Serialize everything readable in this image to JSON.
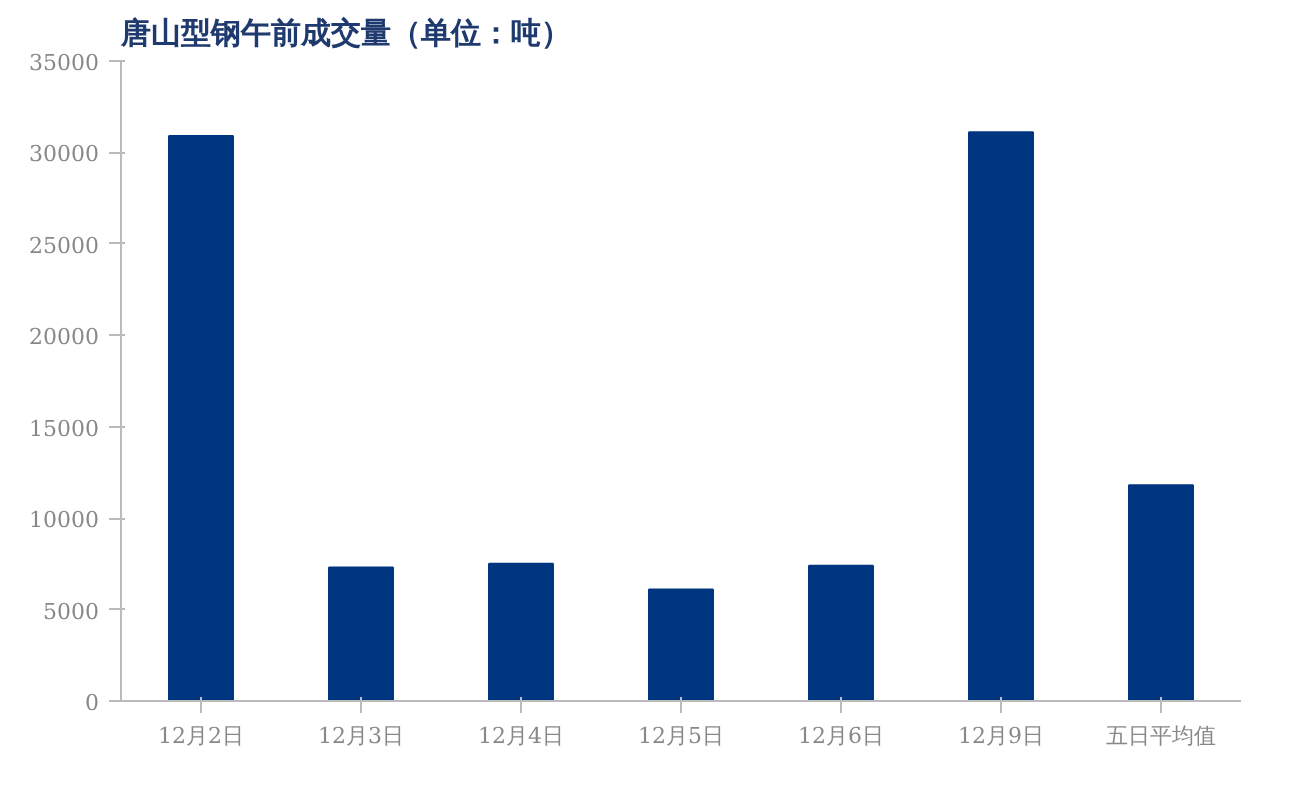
{
  "chart_data": {
    "type": "bar",
    "title": "唐山型钢午前成交量（单位：吨）",
    "categories": [
      "12月2日",
      "12月3日",
      "12月4日",
      "12月5日",
      "12月6日",
      "12月9日",
      "五日平均值"
    ],
    "values": [
      30900,
      7300,
      7500,
      6100,
      7400,
      31100,
      11800
    ],
    "color": "#003580",
    "ylim": [
      0,
      35000
    ],
    "yticks": [
      0,
      5000,
      10000,
      15000,
      20000,
      25000,
      30000,
      35000
    ],
    "grid": false
  }
}
